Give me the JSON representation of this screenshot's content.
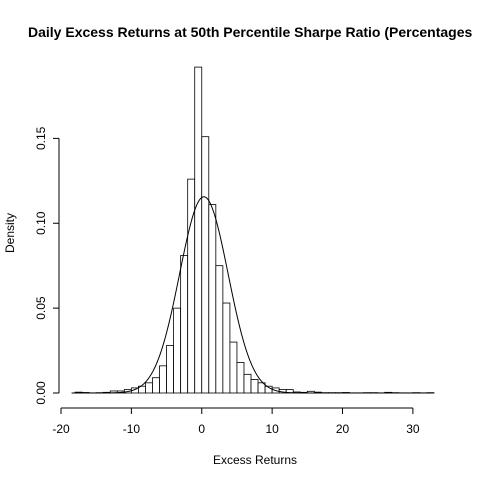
{
  "chart_data": {
    "type": "histogram",
    "title": "Daily Excess Returns at 50th Percentile Sharpe Ratio (Percentages",
    "xlabel": "Excess Returns",
    "ylabel": "Density",
    "xlim": [
      -20,
      33
    ],
    "ylim": [
      0,
      0.195
    ],
    "x_ticks": [
      -20,
      -10,
      0,
      10,
      20,
      30
    ],
    "x_tick_labels": [
      "-20",
      "-10",
      "0",
      "10",
      "20",
      "30"
    ],
    "y_ticks": [
      0.0,
      0.05,
      0.1,
      0.15
    ],
    "y_tick_labels": [
      "0.00",
      "0.05",
      "0.10",
      "0.15"
    ],
    "bin_width": 1,
    "bins": [
      {
        "x0": -18,
        "density": 0.0005
      },
      {
        "x0": -17,
        "density": 0.0003
      },
      {
        "x0": -16,
        "density": 0.0001
      },
      {
        "x0": -15,
        "density": 0.0002
      },
      {
        "x0": -14,
        "density": 0.0004
      },
      {
        "x0": -13,
        "density": 0.0012
      },
      {
        "x0": -12,
        "density": 0.0012
      },
      {
        "x0": -11,
        "density": 0.002
      },
      {
        "x0": -10,
        "density": 0.003
      },
      {
        "x0": -9,
        "density": 0.004
      },
      {
        "x0": -8,
        "density": 0.006
      },
      {
        "x0": -7,
        "density": 0.009
      },
      {
        "x0": -6,
        "density": 0.016
      },
      {
        "x0": -5,
        "density": 0.028
      },
      {
        "x0": -4,
        "density": 0.05
      },
      {
        "x0": -3,
        "density": 0.081
      },
      {
        "x0": -2,
        "density": 0.126
      },
      {
        "x0": -1,
        "density": 0.192
      },
      {
        "x0": 0,
        "density": 0.151
      },
      {
        "x0": 1,
        "density": 0.111
      },
      {
        "x0": 2,
        "density": 0.075
      },
      {
        "x0": 3,
        "density": 0.053
      },
      {
        "x0": 4,
        "density": 0.03
      },
      {
        "x0": 5,
        "density": 0.018
      },
      {
        "x0": 6,
        "density": 0.011
      },
      {
        "x0": 7,
        "density": 0.008
      },
      {
        "x0": 8,
        "density": 0.006
      },
      {
        "x0": 9,
        "density": 0.004
      },
      {
        "x0": 10,
        "density": 0.003
      },
      {
        "x0": 11,
        "density": 0.002
      },
      {
        "x0": 12,
        "density": 0.002
      },
      {
        "x0": 13,
        "density": 0.0006
      },
      {
        "x0": 14,
        "density": 0.0004
      },
      {
        "x0": 15,
        "density": 0.001
      },
      {
        "x0": 16,
        "density": 0.0005
      },
      {
        "x0": 17,
        "density": 0.0002
      },
      {
        "x0": 18,
        "density": 0.0002
      },
      {
        "x0": 19,
        "density": 0.0002
      },
      {
        "x0": 20,
        "density": 0.0003
      },
      {
        "x0": 21,
        "density": 0.0001
      },
      {
        "x0": 22,
        "density": 0.0001
      },
      {
        "x0": 23,
        "density": 0.0002
      },
      {
        "x0": 24,
        "density": 0.0002
      },
      {
        "x0": 25,
        "density": 0.0001
      },
      {
        "x0": 26,
        "density": 0.0004
      },
      {
        "x0": 27,
        "density": 0.0002
      },
      {
        "x0": 28,
        "density": 0.0001
      },
      {
        "x0": 29,
        "density": 0.0001
      },
      {
        "x0": 30,
        "density": 0.0002
      },
      {
        "x0": 31,
        "density": 0.0001
      },
      {
        "x0": 32,
        "density": 0.0002
      }
    ],
    "normal_curve": {
      "mean": 0.3,
      "sd": 3.45
    },
    "grid": false,
    "legend": "none"
  }
}
